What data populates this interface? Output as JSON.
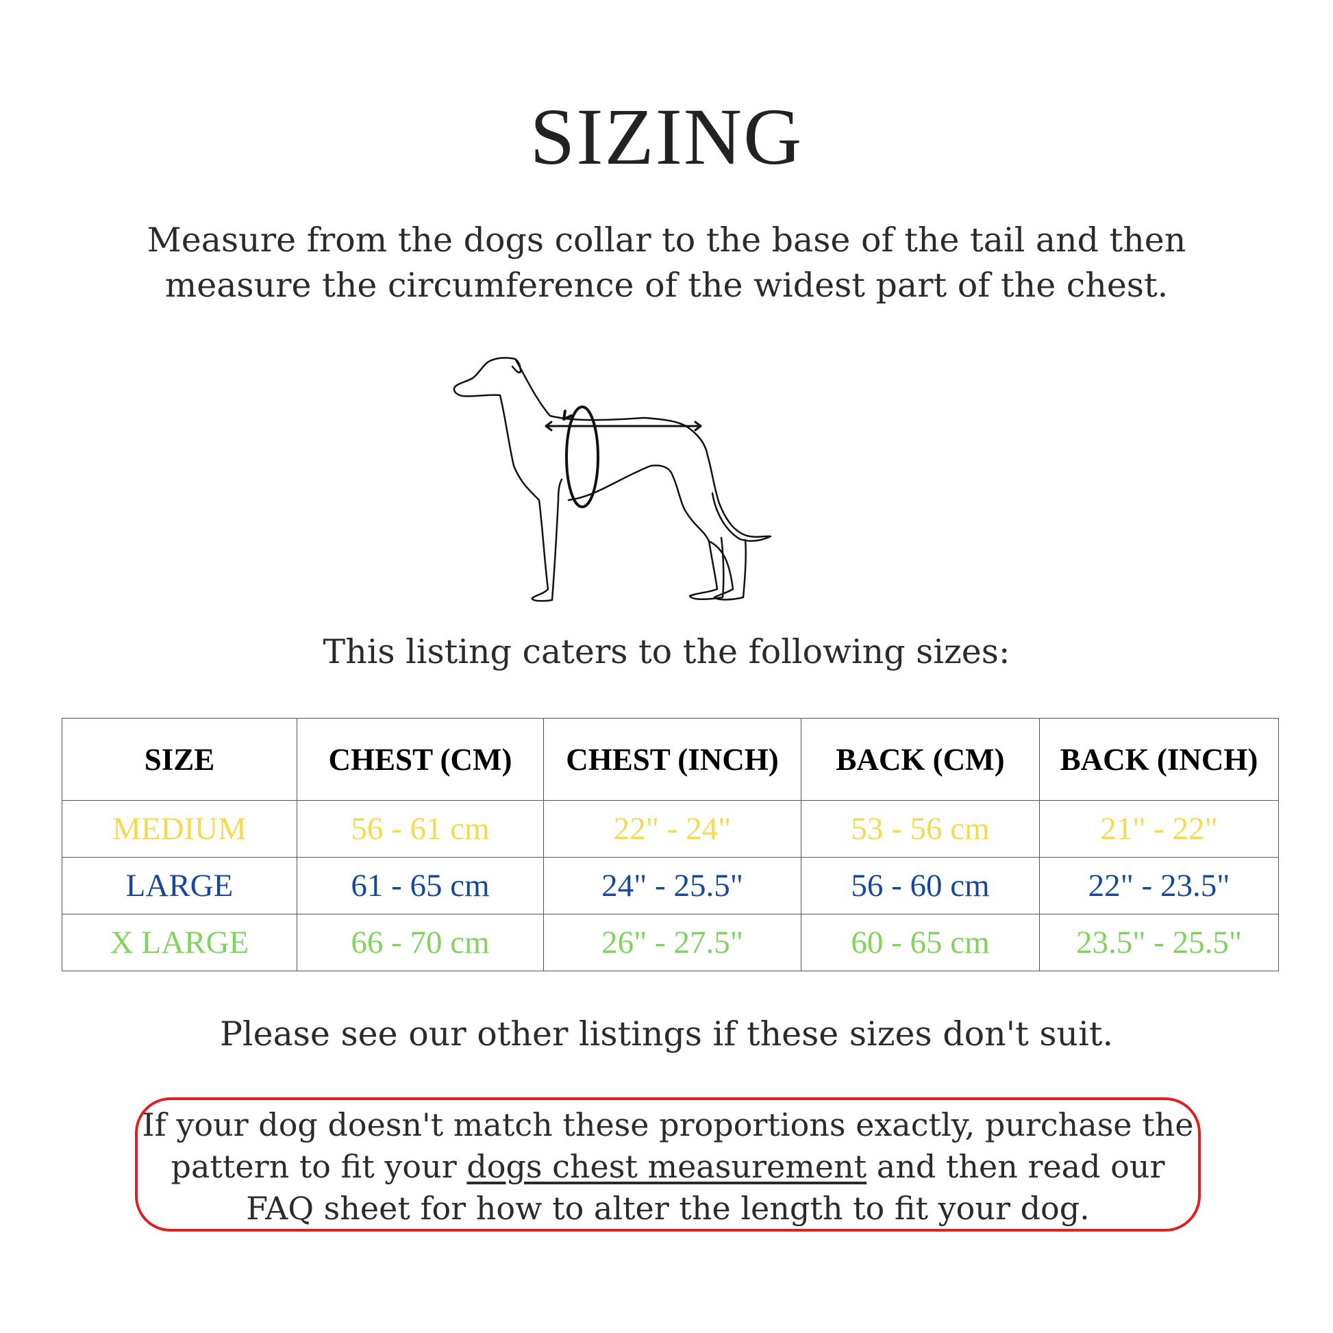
{
  "title": "SIZING",
  "intro": {
    "line1": "Measure from the dogs collar to the base of the tail and then",
    "line2": "measure the circumference of the widest part of the chest."
  },
  "illustration": {
    "icon": "dog-measurement-diagram"
  },
  "caters_text": "This listing caters to the following sizes:",
  "table": {
    "headers": [
      "SIZE",
      "CHEST (CM)",
      "CHEST (INCH)",
      "BACK (CM)",
      "BACK (INCH)"
    ],
    "rows": [
      {
        "color": "#f5d94f",
        "cells": [
          "MEDIUM",
          "56 - 61 cm",
          "22\" - 24\"",
          "53 - 56 cm",
          "21\" - 22\""
        ]
      },
      {
        "color": "#1448a0",
        "cells": [
          "LARGE",
          "61 - 65 cm",
          "24\" - 25.5\"",
          "56 - 60 cm",
          "22\" - 23.5\""
        ]
      },
      {
        "color": "#7ed45c",
        "cells": [
          "X LARGE",
          "66 - 70 cm",
          "26\" - 27.5\"",
          "60 - 65 cm",
          "23.5\" - 25.5\""
        ]
      }
    ]
  },
  "note": "Please see our other listings if these sizes don't suit.",
  "callout": {
    "border_color": "#e02020",
    "part1": "If your dog doesn't match these proportions exactly, purchase the pattern to fit your ",
    "link": "dogs chest measurement",
    "part2": " and then read our FAQ sheet for how to alter the length to fit your dog."
  }
}
